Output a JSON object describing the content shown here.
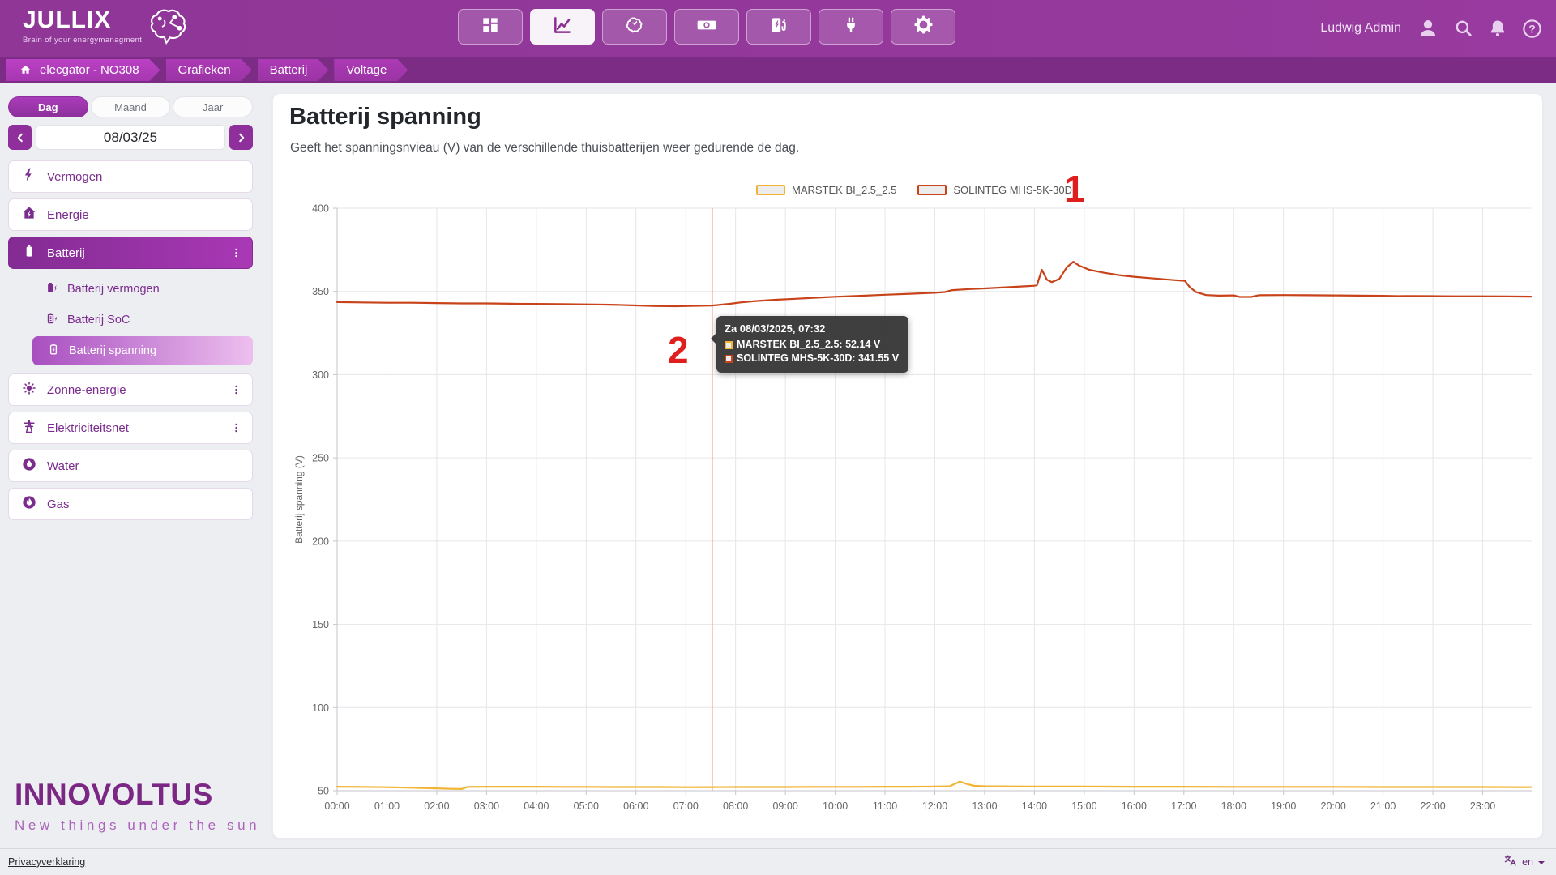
{
  "header": {
    "logo_title": "JULLIX",
    "logo_tagline": "Brain of your energymanagment",
    "user_name": "Ludwig Admin",
    "nav": [
      {
        "icon": "dashboard-icon",
        "active": false
      },
      {
        "icon": "charts-icon",
        "active": true
      },
      {
        "icon": "brain-icon",
        "active": false
      },
      {
        "icon": "money-icon",
        "active": false
      },
      {
        "icon": "charging-station-icon",
        "active": false
      },
      {
        "icon": "plug-icon",
        "active": false
      },
      {
        "icon": "settings-icon",
        "active": false
      }
    ]
  },
  "breadcrumb": {
    "items": [
      "elecgator - NO308",
      "Grafieken",
      "Batterij",
      "Voltage"
    ]
  },
  "sidebar": {
    "period_tabs": [
      {
        "label": "Dag",
        "active": true
      },
      {
        "label": "Maand",
        "active": false
      },
      {
        "label": "Jaar",
        "active": false
      }
    ],
    "date_value": "08/03/25",
    "items": {
      "vermogen": {
        "label": "Vermogen"
      },
      "energie": {
        "label": "Energie"
      },
      "batterij": {
        "label": "Batterij"
      },
      "batterij_children": [
        {
          "label": "Batterij vermogen",
          "active": false
        },
        {
          "label": "Batterij SoC",
          "active": false
        },
        {
          "label": "Batterij spanning",
          "active": true
        }
      ],
      "zonne": {
        "label": "Zonne-energie"
      },
      "net": {
        "label": "Elektriciteitsnet"
      },
      "water": {
        "label": "Water"
      },
      "gas": {
        "label": "Gas"
      }
    },
    "brand": {
      "name": "INNOVOLTUS",
      "tagline": "New things under the sun"
    }
  },
  "main": {
    "title": "Batterij spanning",
    "subtitle": "Geeft het spanningsnvieau (V) van de verschillende thuisbatterijen weer gedurende de dag."
  },
  "tooltip": {
    "header": "Za 08/03/2025, 07:32",
    "rows": [
      {
        "text": "MARSTEK BI_2.5_2.5: 52.14 V"
      },
      {
        "text": "SOLINTEG MHS-5K-30D: 341.55 V"
      }
    ]
  },
  "annotations": {
    "legend_marker": "1",
    "tooltip_marker": "2",
    "color": "#e01e1e"
  },
  "footer": {
    "privacy_link": "Privacyverklaring",
    "language": "en"
  },
  "chart_data": {
    "type": "line",
    "title": "Batterij spanning",
    "ylabel": "Batterij spanning (V)",
    "ylim": [
      50,
      400
    ],
    "yticks": [
      50,
      100,
      150,
      200,
      250,
      300,
      350,
      400
    ],
    "xlim_hours": [
      0,
      24
    ],
    "xticks": [
      "00:00",
      "01:00",
      "02:00",
      "03:00",
      "04:00",
      "05:00",
      "06:00",
      "07:00",
      "08:00",
      "09:00",
      "10:00",
      "11:00",
      "12:00",
      "13:00",
      "14:00",
      "15:00",
      "16:00",
      "17:00",
      "18:00",
      "19:00",
      "20:00",
      "21:00",
      "22:00",
      "23:00"
    ],
    "grid": true,
    "legend_position": "top",
    "crosshair_hour": 7.53,
    "series": [
      {
        "name": "MARSTEK BI_2.5_2.5",
        "color": "#f1b434",
        "points": [
          [
            0,
            52.4
          ],
          [
            0.5,
            52.3
          ],
          [
            1,
            52.1
          ],
          [
            1.5,
            51.8
          ],
          [
            2,
            51.4
          ],
          [
            2.3,
            51.1
          ],
          [
            2.5,
            51.0
          ],
          [
            2.62,
            52.3
          ],
          [
            3,
            52.4
          ],
          [
            3.5,
            52.4
          ],
          [
            4,
            52.4
          ],
          [
            4.5,
            52.3
          ],
          [
            5,
            52.3
          ],
          [
            5.5,
            52.2
          ],
          [
            6,
            52.2
          ],
          [
            6.5,
            52.2
          ],
          [
            7,
            52.1
          ],
          [
            7.53,
            52.14
          ],
          [
            8,
            52.2
          ],
          [
            8.5,
            52.2
          ],
          [
            9,
            52.2
          ],
          [
            9.5,
            52.3
          ],
          [
            10,
            52.3
          ],
          [
            10.5,
            52.3
          ],
          [
            11,
            52.4
          ],
          [
            11.5,
            52.4
          ],
          [
            12,
            52.5
          ],
          [
            12.3,
            52.7
          ],
          [
            12.5,
            55.5
          ],
          [
            12.65,
            54.0
          ],
          [
            12.8,
            52.9
          ],
          [
            13,
            52.7
          ],
          [
            13.5,
            52.6
          ],
          [
            14,
            52.5
          ],
          [
            15,
            52.5
          ],
          [
            16,
            52.4
          ],
          [
            17,
            52.4
          ],
          [
            18,
            52.3
          ],
          [
            19,
            52.3
          ],
          [
            20,
            52.3
          ],
          [
            21,
            52.2
          ],
          [
            22,
            52.2
          ],
          [
            23,
            52.2
          ],
          [
            23.97,
            52.1
          ]
        ]
      },
      {
        "name": "SOLINTEG MHS-5K-30D",
        "color": "#c8431a",
        "points": [
          [
            0,
            343.6
          ],
          [
            0.5,
            343.4
          ],
          [
            1,
            343.2
          ],
          [
            1.5,
            343.2
          ],
          [
            2,
            343.0
          ],
          [
            2.5,
            342.8
          ],
          [
            3,
            342.8
          ],
          [
            3.5,
            342.6
          ],
          [
            4,
            342.5
          ],
          [
            4.5,
            342.4
          ],
          [
            5,
            342.2
          ],
          [
            5.5,
            342.0
          ],
          [
            6,
            341.6
          ],
          [
            6.4,
            341.2
          ],
          [
            6.8,
            341.1
          ],
          [
            7,
            341.2
          ],
          [
            7.3,
            341.4
          ],
          [
            7.53,
            341.55
          ],
          [
            7.7,
            342.0
          ],
          [
            7.9,
            342.6
          ],
          [
            8.1,
            343.4
          ],
          [
            8.4,
            344.2
          ],
          [
            8.8,
            345.0
          ],
          [
            9.2,
            345.6
          ],
          [
            9.6,
            346.2
          ],
          [
            10,
            346.8
          ],
          [
            10.5,
            347.4
          ],
          [
            11,
            348.0
          ],
          [
            11.5,
            348.6
          ],
          [
            12,
            349.2
          ],
          [
            12.2,
            349.6
          ],
          [
            12.35,
            350.8
          ],
          [
            12.7,
            351.4
          ],
          [
            13,
            351.8
          ],
          [
            13.5,
            352.6
          ],
          [
            14,
            353.4
          ],
          [
            14.05,
            353.8
          ],
          [
            14.15,
            363.0
          ],
          [
            14.25,
            357.0
          ],
          [
            14.35,
            355.6
          ],
          [
            14.5,
            357.5
          ],
          [
            14.65,
            364.5
          ],
          [
            14.78,
            367.8
          ],
          [
            14.9,
            365.5
          ],
          [
            15.1,
            363.0
          ],
          [
            15.4,
            361.2
          ],
          [
            15.7,
            359.8
          ],
          [
            16,
            358.8
          ],
          [
            16.4,
            357.8
          ],
          [
            16.8,
            356.8
          ],
          [
            17.02,
            356.4
          ],
          [
            17.12,
            352.5
          ],
          [
            17.25,
            349.5
          ],
          [
            17.45,
            347.8
          ],
          [
            17.7,
            347.5
          ],
          [
            18.0,
            347.6
          ],
          [
            18.12,
            346.7
          ],
          [
            18.35,
            346.7
          ],
          [
            18.5,
            347.7
          ],
          [
            19,
            347.8
          ],
          [
            19.5,
            347.7
          ],
          [
            20,
            347.6
          ],
          [
            20.5,
            347.5
          ],
          [
            21,
            347.4
          ],
          [
            21.3,
            347.2
          ],
          [
            21.5,
            347.3
          ],
          [
            22,
            347.2
          ],
          [
            22.5,
            347.1
          ],
          [
            23,
            347.1
          ],
          [
            23.5,
            347.0
          ],
          [
            23.97,
            346.9
          ]
        ]
      }
    ]
  }
}
